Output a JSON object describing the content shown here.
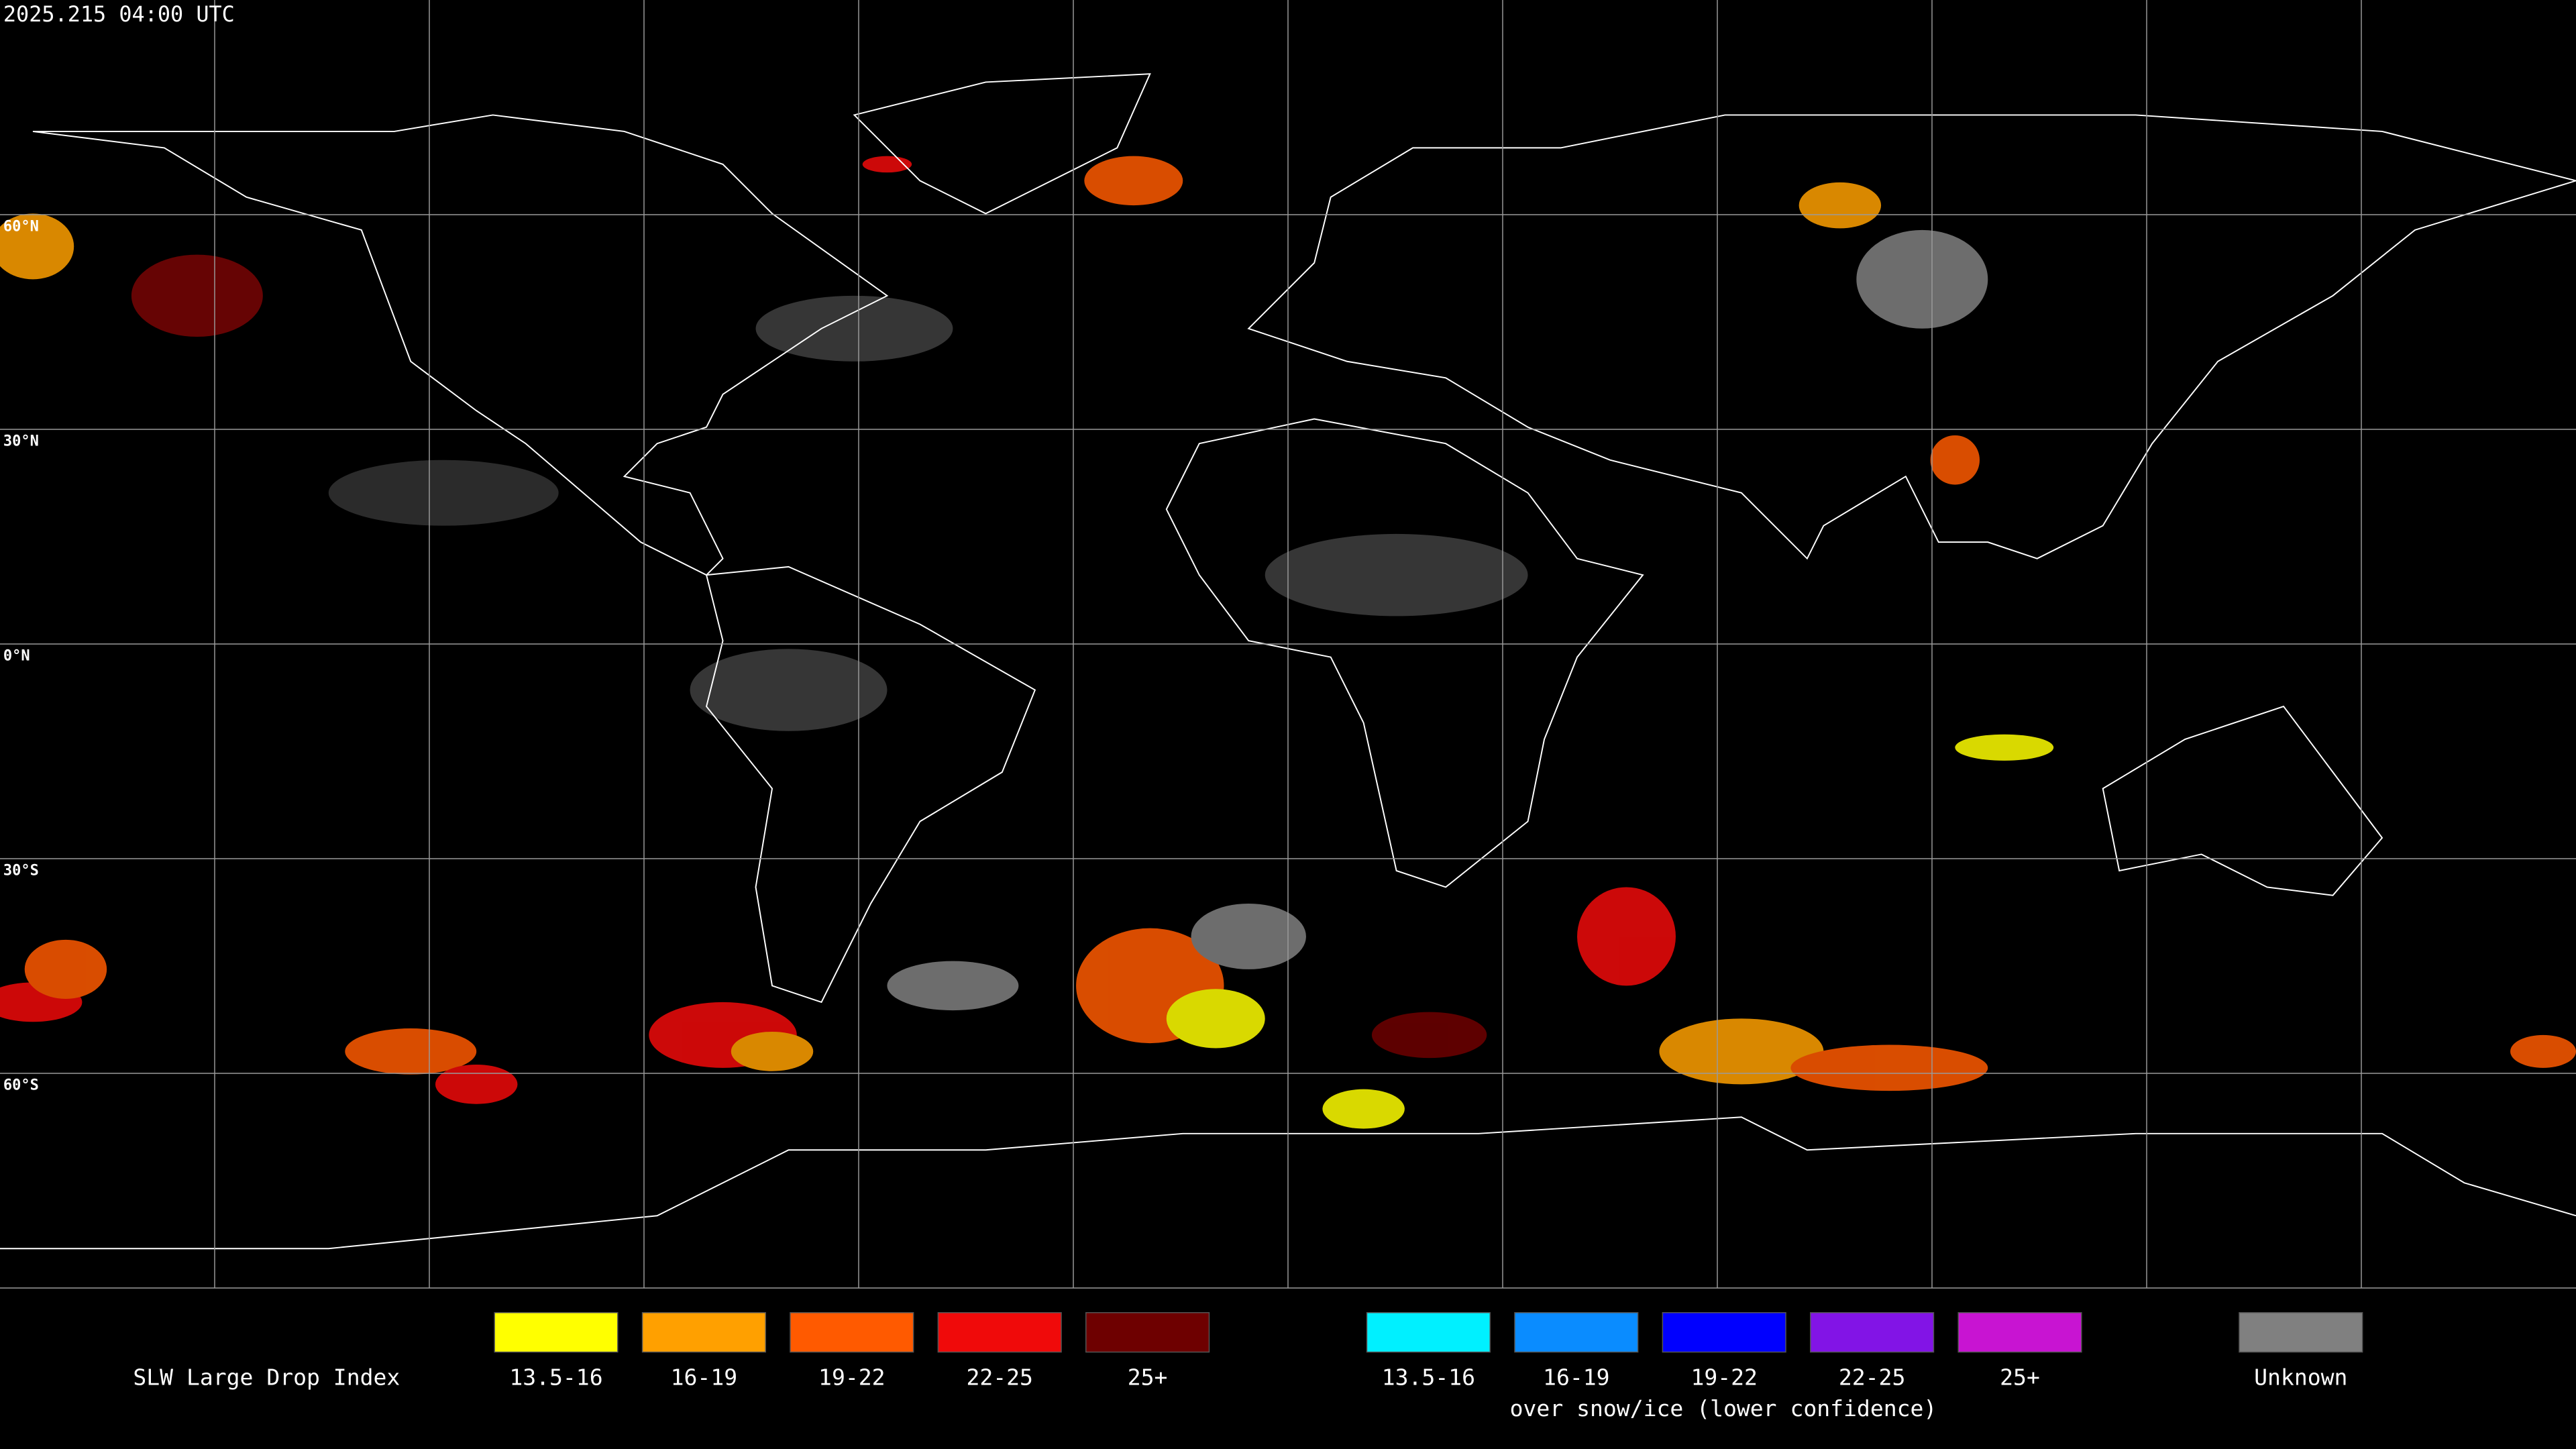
{
  "header": {
    "timestamp": "2025.215 04:00 UTC"
  },
  "map": {
    "latitude_labels": [
      "60°N",
      "30°N",
      "0°N",
      "30°S",
      "60°S"
    ]
  },
  "legend": {
    "title": "SLW Large Drop Index",
    "items": [
      {
        "label": "13.5-16",
        "color": "#ffff00"
      },
      {
        "label": "16-19",
        "color": "#ffa000"
      },
      {
        "label": "19-22",
        "color": "#ff5a00"
      },
      {
        "label": "22-25",
        "color": "#f00a0a"
      },
      {
        "label": "25+",
        "color": "#6e0000"
      }
    ],
    "snow_items": [
      {
        "label": "13.5-16",
        "color": "#00f0ff"
      },
      {
        "label": "16-19",
        "color": "#0a8cff"
      },
      {
        "label": "19-22",
        "color": "#0000ff"
      },
      {
        "label": "22-25",
        "color": "#8214e6"
      },
      {
        "label": "25+",
        "color": "#c814d2"
      }
    ],
    "snow_caption": "over snow/ice (lower confidence)",
    "unknown": {
      "label": "Unknown",
      "color": "#808080"
    }
  }
}
